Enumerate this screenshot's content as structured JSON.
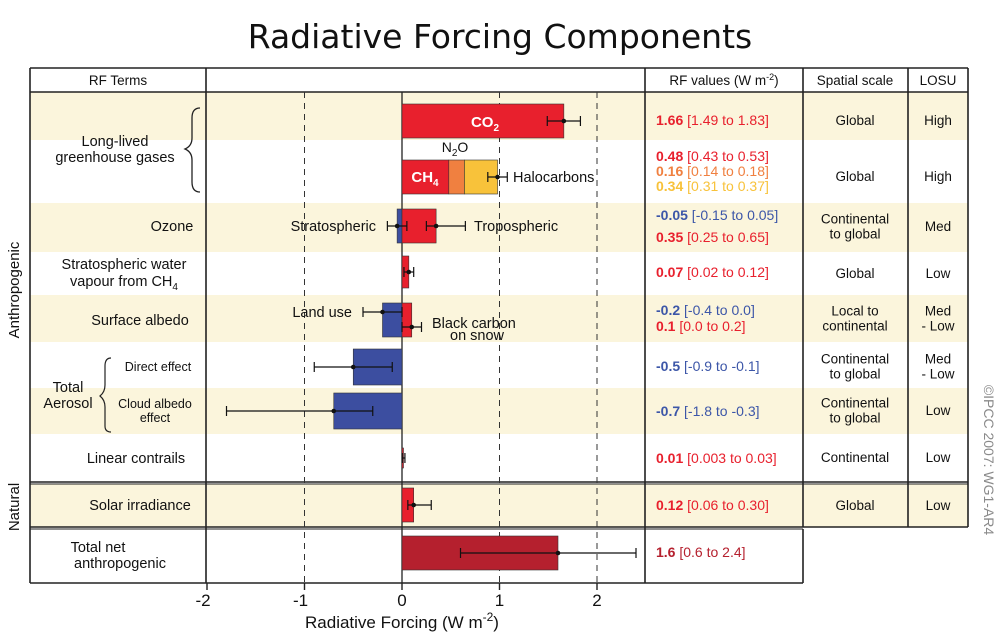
{
  "chart_data": {
    "type": "bar",
    "orientation": "horizontal",
    "title": "Radiative Forcing Components",
    "xlabel": "Radiative Forcing  (W m",
    "xlabel_sup": "-2",
    "xlabel_end": ")",
    "xlim": [
      -2,
      2.5
    ],
    "xticks": [
      "-2",
      "-1",
      "0",
      "1",
      "2"
    ],
    "grid": "dashed vertical lines at -1, 1, 2",
    "copyright": "©IPCC 2007: WG1-AR4",
    "headers": {
      "rf_terms": "RF Terms",
      "rf_values": "RF values (W m",
      "rf_values_sup": "-2",
      "rf_values_end": ")",
      "spatial_scale": "Spatial scale",
      "losu": "LOSU"
    },
    "side_labels": {
      "anthropogenic": "Anthropogenic",
      "natural": "Natural"
    },
    "colors": {
      "band": "#fbf5dc",
      "red": "#e8202d",
      "orange": "#f08040",
      "yellow": "#f8c23a",
      "blue": "#3c4ea0",
      "darkred": "#b5202e",
      "valblue": "#3c56a8"
    },
    "rows": [
      {
        "id": "llghg-co2",
        "term": "Long-lived greenhouse gases",
        "term_lines": [
          "Long-lived",
          "greenhouse gases"
        ],
        "bars": [
          {
            "name": "CO2",
            "value": 1.66,
            "low": 1.49,
            "high": 1.83,
            "color": "#e8202d"
          }
        ],
        "values": [
          {
            "best": "1.66",
            "range": "[1.49 to 1.83]",
            "color": "#e8202d"
          }
        ],
        "scale": [
          "Global"
        ],
        "losu": [
          "High"
        ]
      },
      {
        "id": "llghg-other",
        "term": "",
        "bars": [
          {
            "name": "CH4",
            "value": 0.48,
            "color": "#e8202d"
          },
          {
            "name": "N2O",
            "value": 0.16,
            "color": "#f08040"
          },
          {
            "name": "Halocarbons",
            "value": 0.34,
            "color": "#f8c23a"
          }
        ],
        "stack_error": {
          "value": 0.98,
          "low": 0.88,
          "high": 1.08
        },
        "labels": {
          "ch4": "CH",
          "ch4_sub": "4",
          "n2o": "N",
          "n2o_sub": "2",
          "n2o_end": "O",
          "halocarbons": "Halocarbons"
        },
        "values": [
          {
            "best": "0.48",
            "range": "[0.43 to 0.53]",
            "color": "#e8202d"
          },
          {
            "best": "0.16",
            "range": "[0.14 to 0.18]",
            "color": "#f08040"
          },
          {
            "best": "0.34",
            "range": "[0.31 to 0.37]",
            "color": "#f8c23a"
          }
        ],
        "scale": [
          "Global"
        ],
        "losu": [
          "High"
        ]
      },
      {
        "id": "ozone",
        "term": "Ozone",
        "bars": [
          {
            "name": "Stratospheric",
            "value": -0.05,
            "low": -0.15,
            "high": 0.05,
            "color": "#3c4ea0"
          },
          {
            "name": "Tropospheric",
            "value": 0.35,
            "low": 0.25,
            "high": 0.65,
            "color": "#e8202d"
          }
        ],
        "values": [
          {
            "best": "-0.05",
            "range": "[-0.15 to 0.05]",
            "color": "#3c56a8"
          },
          {
            "best": "0.35",
            "range": "[0.25 to 0.65]",
            "color": "#e8202d"
          }
        ],
        "scale": [
          "Continental",
          "to global"
        ],
        "losu": [
          "Med"
        ]
      },
      {
        "id": "strat-water",
        "term": "Stratospheric water vapour from CH4",
        "term_lines": [
          "Stratospheric water",
          "vapour from CH"
        ],
        "term_sub": "4",
        "bars": [
          {
            "name": "",
            "value": 0.07,
            "low": 0.02,
            "high": 0.12,
            "color": "#e8202d"
          }
        ],
        "values": [
          {
            "best": "0.07",
            "range": "[0.02 to 0.12]",
            "color": "#e8202d"
          }
        ],
        "scale": [
          "Global"
        ],
        "losu": [
          "Low"
        ]
      },
      {
        "id": "surface-albedo",
        "term": "Surface albedo",
        "bars": [
          {
            "name": "Land use",
            "value": -0.2,
            "low": -0.4,
            "high": 0.0,
            "color": "#3c4ea0"
          },
          {
            "name": "Black carbon on snow",
            "value": 0.1,
            "low": 0.0,
            "high": 0.2,
            "color": "#e8202d"
          }
        ],
        "labels": {
          "land_use": "Land use",
          "black_carbon": [
            "Black carbon",
            "on snow"
          ]
        },
        "values": [
          {
            "best": "-0.2",
            "range": "[-0.4 to 0.0]",
            "color": "#3c56a8"
          },
          {
            "best": "0.1",
            "range": "[0.0 to 0.2]",
            "color": "#e8202d"
          }
        ],
        "scale": [
          "Local to",
          "continental"
        ],
        "losu": [
          "Med",
          "- Low"
        ]
      },
      {
        "id": "aerosol-direct",
        "term": "Direct effect",
        "bars": [
          {
            "name": "",
            "value": -0.5,
            "low": -0.9,
            "high": -0.1,
            "color": "#3c4ea0"
          }
        ],
        "values": [
          {
            "best": "-0.5",
            "range": "[-0.9 to -0.1]",
            "color": "#3c56a8"
          }
        ],
        "scale": [
          "Continental",
          "to global"
        ],
        "losu": [
          "Med",
          "- Low"
        ]
      },
      {
        "id": "aerosol-cloud",
        "term": "Cloud albedo effect",
        "term_lines": [
          "Cloud albedo",
          "effect"
        ],
        "bars": [
          {
            "name": "",
            "value": -0.7,
            "low": -1.8,
            "high": -0.3,
            "color": "#3c4ea0"
          }
        ],
        "values": [
          {
            "best": "-0.7",
            "range": "[-1.8 to -0.3]",
            "color": "#3c56a8"
          }
        ],
        "scale": [
          "Continental",
          "to global"
        ],
        "losu": [
          "Low"
        ]
      },
      {
        "id": "contrails",
        "term": "Linear contrails",
        "bars": [
          {
            "name": "",
            "value": 0.01,
            "low": 0.003,
            "high": 0.03,
            "color": "#e8202d"
          }
        ],
        "values": [
          {
            "best": "0.01",
            "range": "[0.003 to 0.03]",
            "color": "#e8202d"
          }
        ],
        "scale": [
          "Continental"
        ],
        "losu": [
          "Low"
        ]
      },
      {
        "id": "solar",
        "term": "Solar irradiance",
        "bars": [
          {
            "name": "",
            "value": 0.12,
            "low": 0.06,
            "high": 0.3,
            "color": "#e8202d"
          }
        ],
        "values": [
          {
            "best": "0.12",
            "range": "[0.06 to 0.30]",
            "color": "#e8202d"
          }
        ],
        "scale": [
          "Global"
        ],
        "losu": [
          "Low"
        ]
      },
      {
        "id": "total",
        "term": "Total net anthropogenic",
        "term_lines": [
          "Total net",
          "anthropogenic"
        ],
        "bars": [
          {
            "name": "",
            "value": 1.6,
            "low": 0.6,
            "high": 2.4,
            "color": "#b5202e"
          }
        ],
        "values": [
          {
            "best": "1.6",
            "range": "[0.6 to 2.4]",
            "color": "#b5202e"
          }
        ],
        "scale": [],
        "losu": []
      }
    ],
    "aerosol_group": {
      "label_lines": [
        "Total",
        "Aerosol"
      ]
    }
  }
}
